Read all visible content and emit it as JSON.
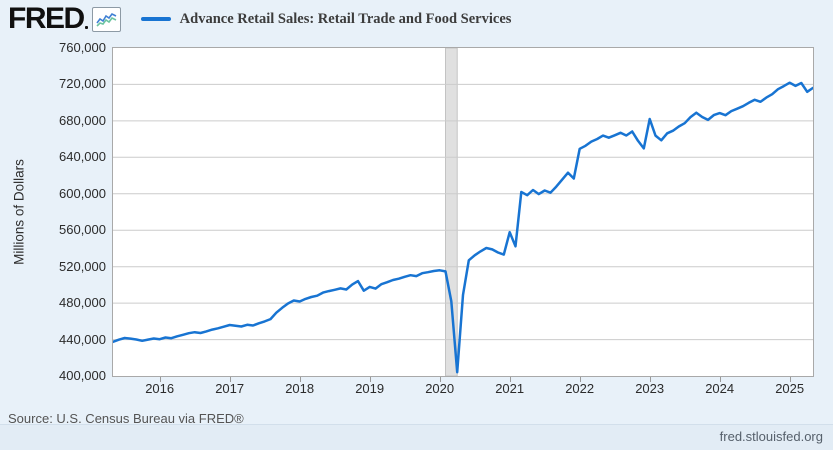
{
  "header": {
    "logo_text": "FRED",
    "series_title": "Advance Retail Sales: Retail Trade and Food Services"
  },
  "footer": {
    "source": "Source: U.S. Census Bureau via FRED®",
    "site": "fred.stlouisfed.org"
  },
  "chart_data": {
    "type": "line",
    "title": "Advance Retail Sales: Retail Trade and Food Services",
    "xlabel": "",
    "ylabel": "Millions of Dollars",
    "ylim": [
      400000,
      760000
    ],
    "y_ticks": [
      400000,
      440000,
      480000,
      520000,
      560000,
      600000,
      640000,
      680000,
      720000,
      760000
    ],
    "x_ticks": [
      "2016",
      "2017",
      "2018",
      "2019",
      "2020",
      "2021",
      "2022",
      "2023",
      "2024",
      "2025"
    ],
    "grid": "horizontal",
    "legend_position": "top-left",
    "line_color": "#1874d2",
    "grid_color": "#cccccc",
    "recession_band": {
      "from": "2020-02",
      "to": "2020-04",
      "fill": "#e0e0e0",
      "edge": "#c3c3c3"
    },
    "series": [
      {
        "name": "Advance Retail Sales: Retail Trade and Food Services",
        "x": [
          "2015-05",
          "2015-06",
          "2015-07",
          "2015-08",
          "2015-09",
          "2015-10",
          "2015-11",
          "2015-12",
          "2016-01",
          "2016-02",
          "2016-03",
          "2016-04",
          "2016-05",
          "2016-06",
          "2016-07",
          "2016-08",
          "2016-09",
          "2016-10",
          "2016-11",
          "2016-12",
          "2017-01",
          "2017-02",
          "2017-03",
          "2017-04",
          "2017-05",
          "2017-06",
          "2017-07",
          "2017-08",
          "2017-09",
          "2017-10",
          "2017-11",
          "2017-12",
          "2018-01",
          "2018-02",
          "2018-03",
          "2018-04",
          "2018-05",
          "2018-06",
          "2018-07",
          "2018-08",
          "2018-09",
          "2018-10",
          "2018-11",
          "2018-12",
          "2019-01",
          "2019-02",
          "2019-03",
          "2019-04",
          "2019-05",
          "2019-06",
          "2019-07",
          "2019-08",
          "2019-09",
          "2019-10",
          "2019-11",
          "2019-12",
          "2020-01",
          "2020-02",
          "2020-03",
          "2020-04",
          "2020-05",
          "2020-06",
          "2020-07",
          "2020-08",
          "2020-09",
          "2020-10",
          "2020-11",
          "2020-12",
          "2021-01",
          "2021-02",
          "2021-03",
          "2021-04",
          "2021-05",
          "2021-06",
          "2021-07",
          "2021-08",
          "2021-09",
          "2021-10",
          "2021-11",
          "2021-12",
          "2022-01",
          "2022-02",
          "2022-03",
          "2022-04",
          "2022-05",
          "2022-06",
          "2022-07",
          "2022-08",
          "2022-09",
          "2022-10",
          "2022-11",
          "2022-12",
          "2023-01",
          "2023-02",
          "2023-03",
          "2023-04",
          "2023-05",
          "2023-06",
          "2023-07",
          "2023-08",
          "2023-09",
          "2023-10",
          "2023-11",
          "2023-12",
          "2024-01",
          "2024-02",
          "2024-03",
          "2024-04",
          "2024-05",
          "2024-06",
          "2024-07",
          "2024-08",
          "2024-09",
          "2024-10",
          "2024-11",
          "2024-12",
          "2025-01",
          "2025-02",
          "2025-03",
          "2025-04",
          "2025-05"
        ],
        "values": [
          437500,
          439800,
          441700,
          441000,
          440100,
          438600,
          439900,
          441200,
          440400,
          442300,
          441500,
          443600,
          445200,
          447000,
          448100,
          447200,
          449000,
          450900,
          452300,
          454100,
          456000,
          455100,
          454300,
          456200,
          455400,
          457800,
          459900,
          462400,
          469500,
          474800,
          479600,
          482900,
          481800,
          484600,
          486700,
          488100,
          491500,
          493200,
          494600,
          496100,
          494900,
          500300,
          504200,
          493600,
          497800,
          495900,
          500800,
          503000,
          505400,
          506800,
          508900,
          510600,
          509700,
          512800,
          513900,
          515200,
          516000,
          514800,
          482100,
          404200,
          489000,
          527000,
          532500,
          536800,
          540500,
          538900,
          535600,
          533200,
          557800,
          542300,
          601900,
          598400,
          604100,
          599700,
          603600,
          601200,
          607900,
          615600,
          623100,
          616800,
          649400,
          652700,
          657300,
          660100,
          663800,
          661500,
          664200,
          666900,
          664000,
          668300,
          658200,
          649800,
          682100,
          663900,
          658700,
          666400,
          669200,
          673800,
          677500,
          684200,
          689000,
          684300,
          681100,
          686300,
          688500,
          686200,
          690700,
          693400,
          696100,
          699800,
          703200,
          700900,
          705600,
          709300,
          714800,
          718200,
          721900,
          718400,
          721600,
          711900,
          716200
        ]
      }
    ]
  }
}
